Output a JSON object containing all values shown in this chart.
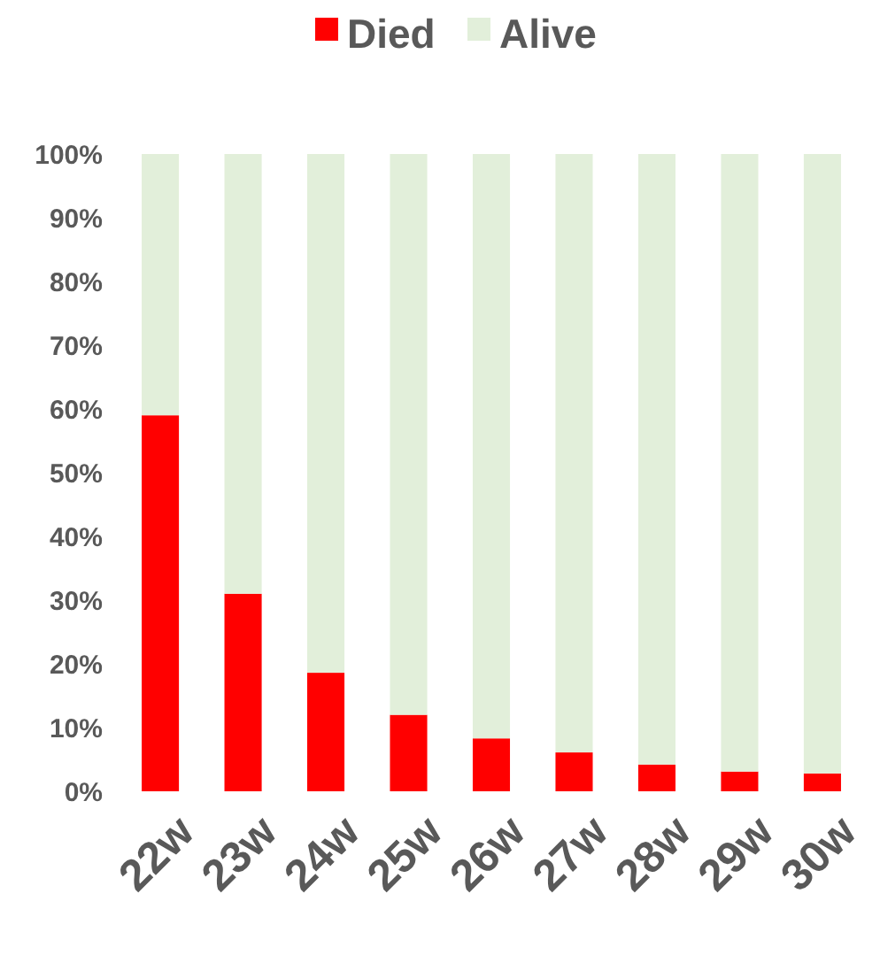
{
  "chart_data": {
    "type": "bar",
    "stacked": true,
    "legend": "top",
    "categories": [
      "22w",
      "23w",
      "24w",
      "25w",
      "26w",
      "27w",
      "28w",
      "29w",
      "30w"
    ],
    "series": [
      {
        "name": "Died",
        "color": "#ff0000",
        "values": [
          59,
          31,
          18.6,
          12,
          8.3,
          6.1,
          4.2,
          3.1,
          2.8
        ]
      },
      {
        "name": "Alive",
        "color": "#e2efda",
        "values": [
          41,
          69,
          81.4,
          88,
          91.7,
          93.9,
          95.8,
          96.9,
          97.2
        ]
      }
    ],
    "ylim": [
      0,
      100
    ],
    "yticks": [
      {
        "value": 0,
        "label": "0%"
      },
      {
        "value": 10,
        "label": "10%"
      },
      {
        "value": 20,
        "label": "20%"
      },
      {
        "value": 30,
        "label": "30%"
      },
      {
        "value": 40,
        "label": "40%"
      },
      {
        "value": 50,
        "label": "50%"
      },
      {
        "value": 60,
        "label": "60%"
      },
      {
        "value": 70,
        "label": "70%"
      },
      {
        "value": 80,
        "label": "80%"
      },
      {
        "value": 90,
        "label": "90%"
      },
      {
        "value": 100,
        "label": "100%"
      }
    ]
  }
}
